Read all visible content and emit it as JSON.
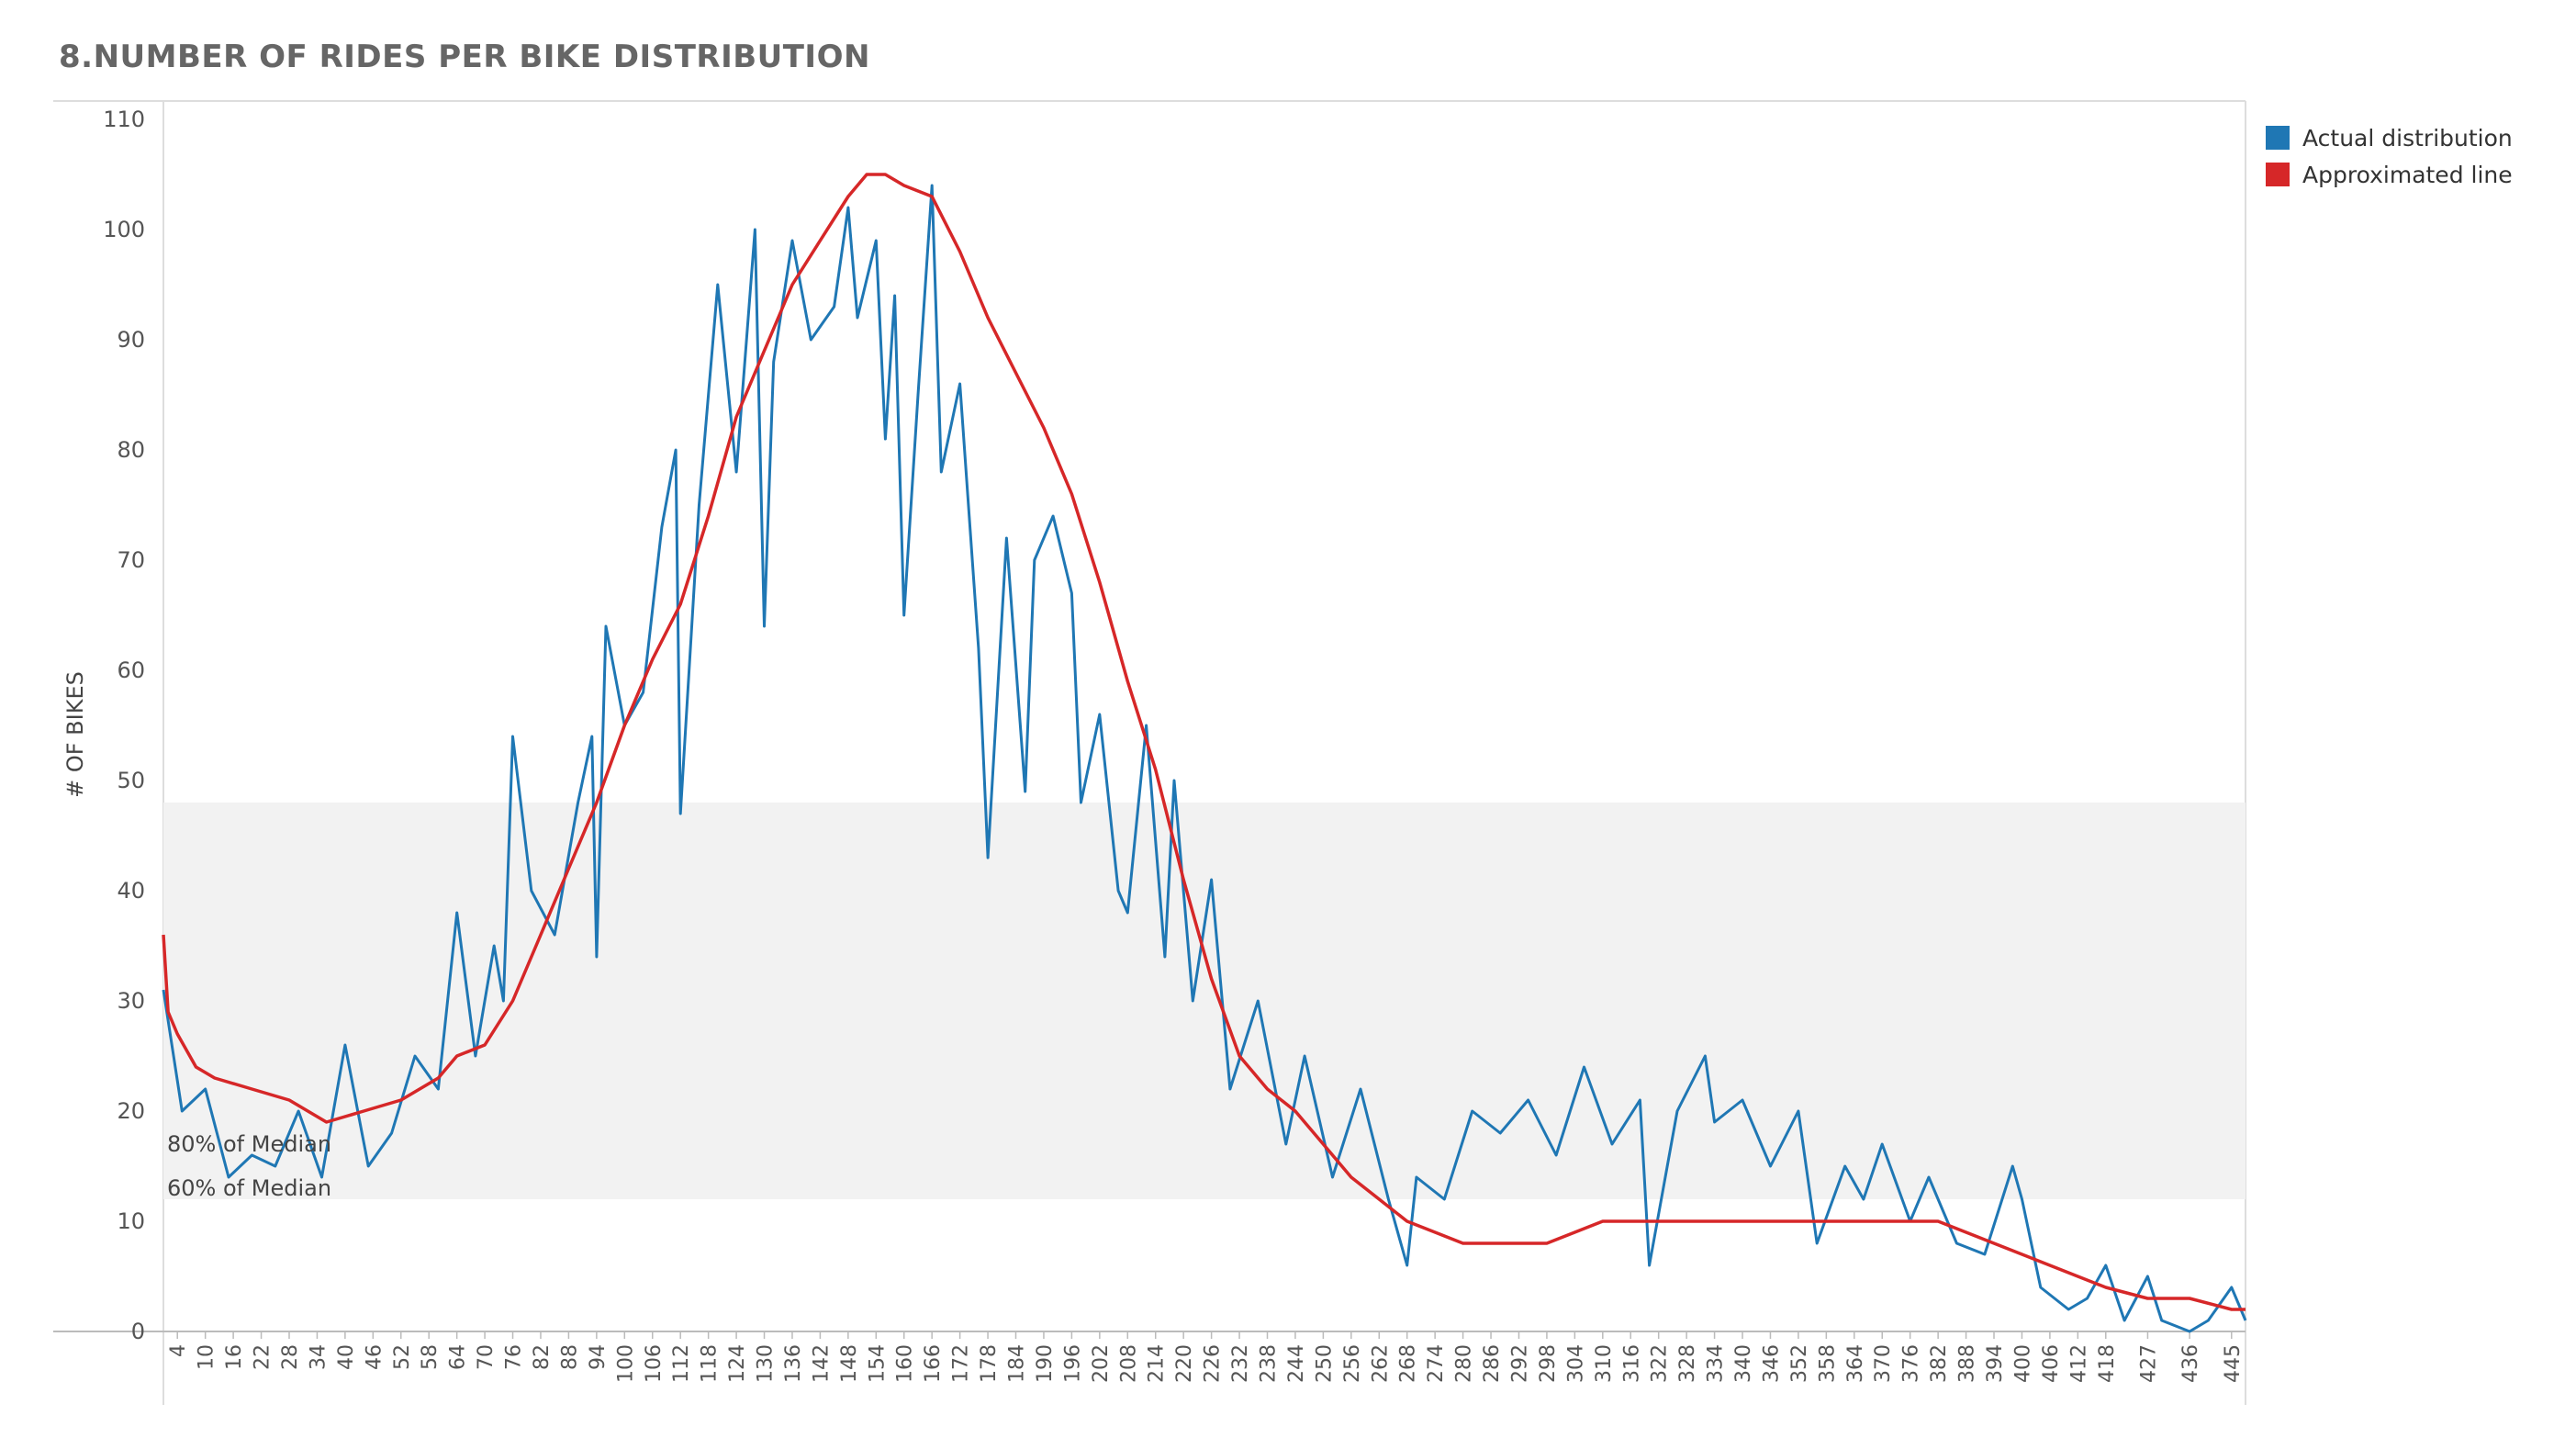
{
  "title": "8.NUMBER OF RIDES PER BIKE DISTRIBUTION",
  "legend": {
    "actual": "Actual distribution",
    "approx": "Approximated line"
  },
  "colors": {
    "actual": "#1f77b4",
    "approx": "#d62728",
    "band": "#f2f2f2"
  },
  "chart_data": {
    "type": "line",
    "title": "8.NUMBER OF RIDES PER BIKE DISTRIBUTION",
    "xlabel": "",
    "ylabel": "# OF BIKES",
    "xlim": [
      1,
      448
    ],
    "ylim": [
      0,
      110
    ],
    "y_ticks": [
      0,
      10,
      20,
      30,
      40,
      50,
      60,
      70,
      80,
      90,
      100,
      110
    ],
    "x_ticks": [
      4,
      10,
      16,
      22,
      28,
      34,
      40,
      46,
      52,
      58,
      64,
      70,
      76,
      82,
      88,
      94,
      100,
      106,
      112,
      118,
      124,
      130,
      136,
      142,
      148,
      154,
      160,
      166,
      172,
      178,
      184,
      190,
      196,
      202,
      208,
      214,
      220,
      226,
      232,
      238,
      244,
      250,
      256,
      262,
      268,
      274,
      280,
      286,
      292,
      298,
      304,
      310,
      316,
      322,
      328,
      334,
      340,
      346,
      352,
      358,
      364,
      370,
      376,
      382,
      388,
      394,
      400,
      406,
      412,
      418,
      427,
      436,
      445
    ],
    "band": {
      "y_from": 12,
      "y_to": 48
    },
    "annotations": [
      {
        "text": "80% of Median",
        "y": 17
      },
      {
        "text": "60% of Median",
        "y": 13
      }
    ],
    "series": [
      {
        "name": "Actual distribution",
        "x": [
          1,
          5,
          10,
          15,
          20,
          25,
          30,
          35,
          40,
          45,
          50,
          55,
          60,
          64,
          68,
          72,
          74,
          76,
          80,
          85,
          90,
          93,
          94,
          96,
          100,
          104,
          108,
          111,
          112,
          116,
          120,
          124,
          128,
          130,
          132,
          136,
          140,
          145,
          148,
          150,
          154,
          156,
          158,
          160,
          163,
          166,
          168,
          172,
          176,
          178,
          182,
          186,
          188,
          192,
          196,
          198,
          202,
          206,
          208,
          212,
          216,
          218,
          222,
          226,
          230,
          236,
          242,
          246,
          252,
          258,
          264,
          268,
          270,
          276,
          282,
          288,
          294,
          300,
          306,
          312,
          318,
          320,
          326,
          332,
          334,
          340,
          346,
          352,
          356,
          362,
          366,
          370,
          376,
          380,
          386,
          392,
          398,
          400,
          404,
          410,
          414,
          418,
          422,
          427,
          430,
          436,
          440,
          445,
          448
        ],
        "values": [
          31,
          20,
          22,
          14,
          16,
          15,
          20,
          14,
          26,
          15,
          18,
          25,
          22,
          38,
          25,
          35,
          30,
          54,
          40,
          36,
          48,
          54,
          34,
          64,
          55,
          58,
          73,
          80,
          47,
          75,
          95,
          78,
          100,
          64,
          88,
          99,
          90,
          93,
          102,
          92,
          99,
          81,
          94,
          65,
          85,
          104,
          78,
          86,
          62,
          43,
          72,
          49,
          70,
          74,
          67,
          48,
          56,
          40,
          38,
          55,
          34,
          50,
          30,
          41,
          22,
          30,
          17,
          25,
          14,
          22,
          12,
          6,
          14,
          12,
          20,
          18,
          21,
          16,
          24,
          17,
          21,
          6,
          20,
          25,
          19,
          21,
          15,
          20,
          8,
          15,
          12,
          17,
          10,
          14,
          8,
          7,
          15,
          12,
          4,
          2,
          3,
          6,
          1,
          5,
          1,
          0,
          1,
          4,
          1
        ]
      },
      {
        "name": "Approximated line",
        "x": [
          1,
          2,
          4,
          8,
          12,
          20,
          28,
          36,
          44,
          52,
          60,
          64,
          70,
          76,
          82,
          88,
          94,
          100,
          106,
          112,
          118,
          124,
          130,
          136,
          142,
          148,
          152,
          156,
          160,
          166,
          172,
          178,
          184,
          190,
          196,
          202,
          208,
          214,
          220,
          226,
          232,
          238,
          244,
          250,
          256,
          262,
          268,
          274,
          280,
          286,
          292,
          298,
          304,
          310,
          316,
          322,
          328,
          334,
          340,
          346,
          352,
          358,
          364,
          370,
          376,
          382,
          388,
          394,
          400,
          406,
          412,
          418,
          427,
          436,
          445,
          448
        ],
        "values": [
          36,
          29,
          27,
          24,
          23,
          22,
          21,
          19,
          20,
          21,
          23,
          25,
          26,
          30,
          36,
          42,
          48,
          55,
          61,
          66,
          74,
          83,
          89,
          95,
          99,
          103,
          105,
          105,
          104,
          103,
          98,
          92,
          87,
          82,
          76,
          68,
          59,
          51,
          41,
          32,
          25,
          22,
          20,
          17,
          14,
          12,
          10,
          9,
          8,
          8,
          8,
          8,
          9,
          10,
          10,
          10,
          10,
          10,
          10,
          10,
          10,
          10,
          10,
          10,
          10,
          10,
          9,
          8,
          7,
          6,
          5,
          4,
          3,
          3,
          2,
          2
        ]
      }
    ]
  }
}
